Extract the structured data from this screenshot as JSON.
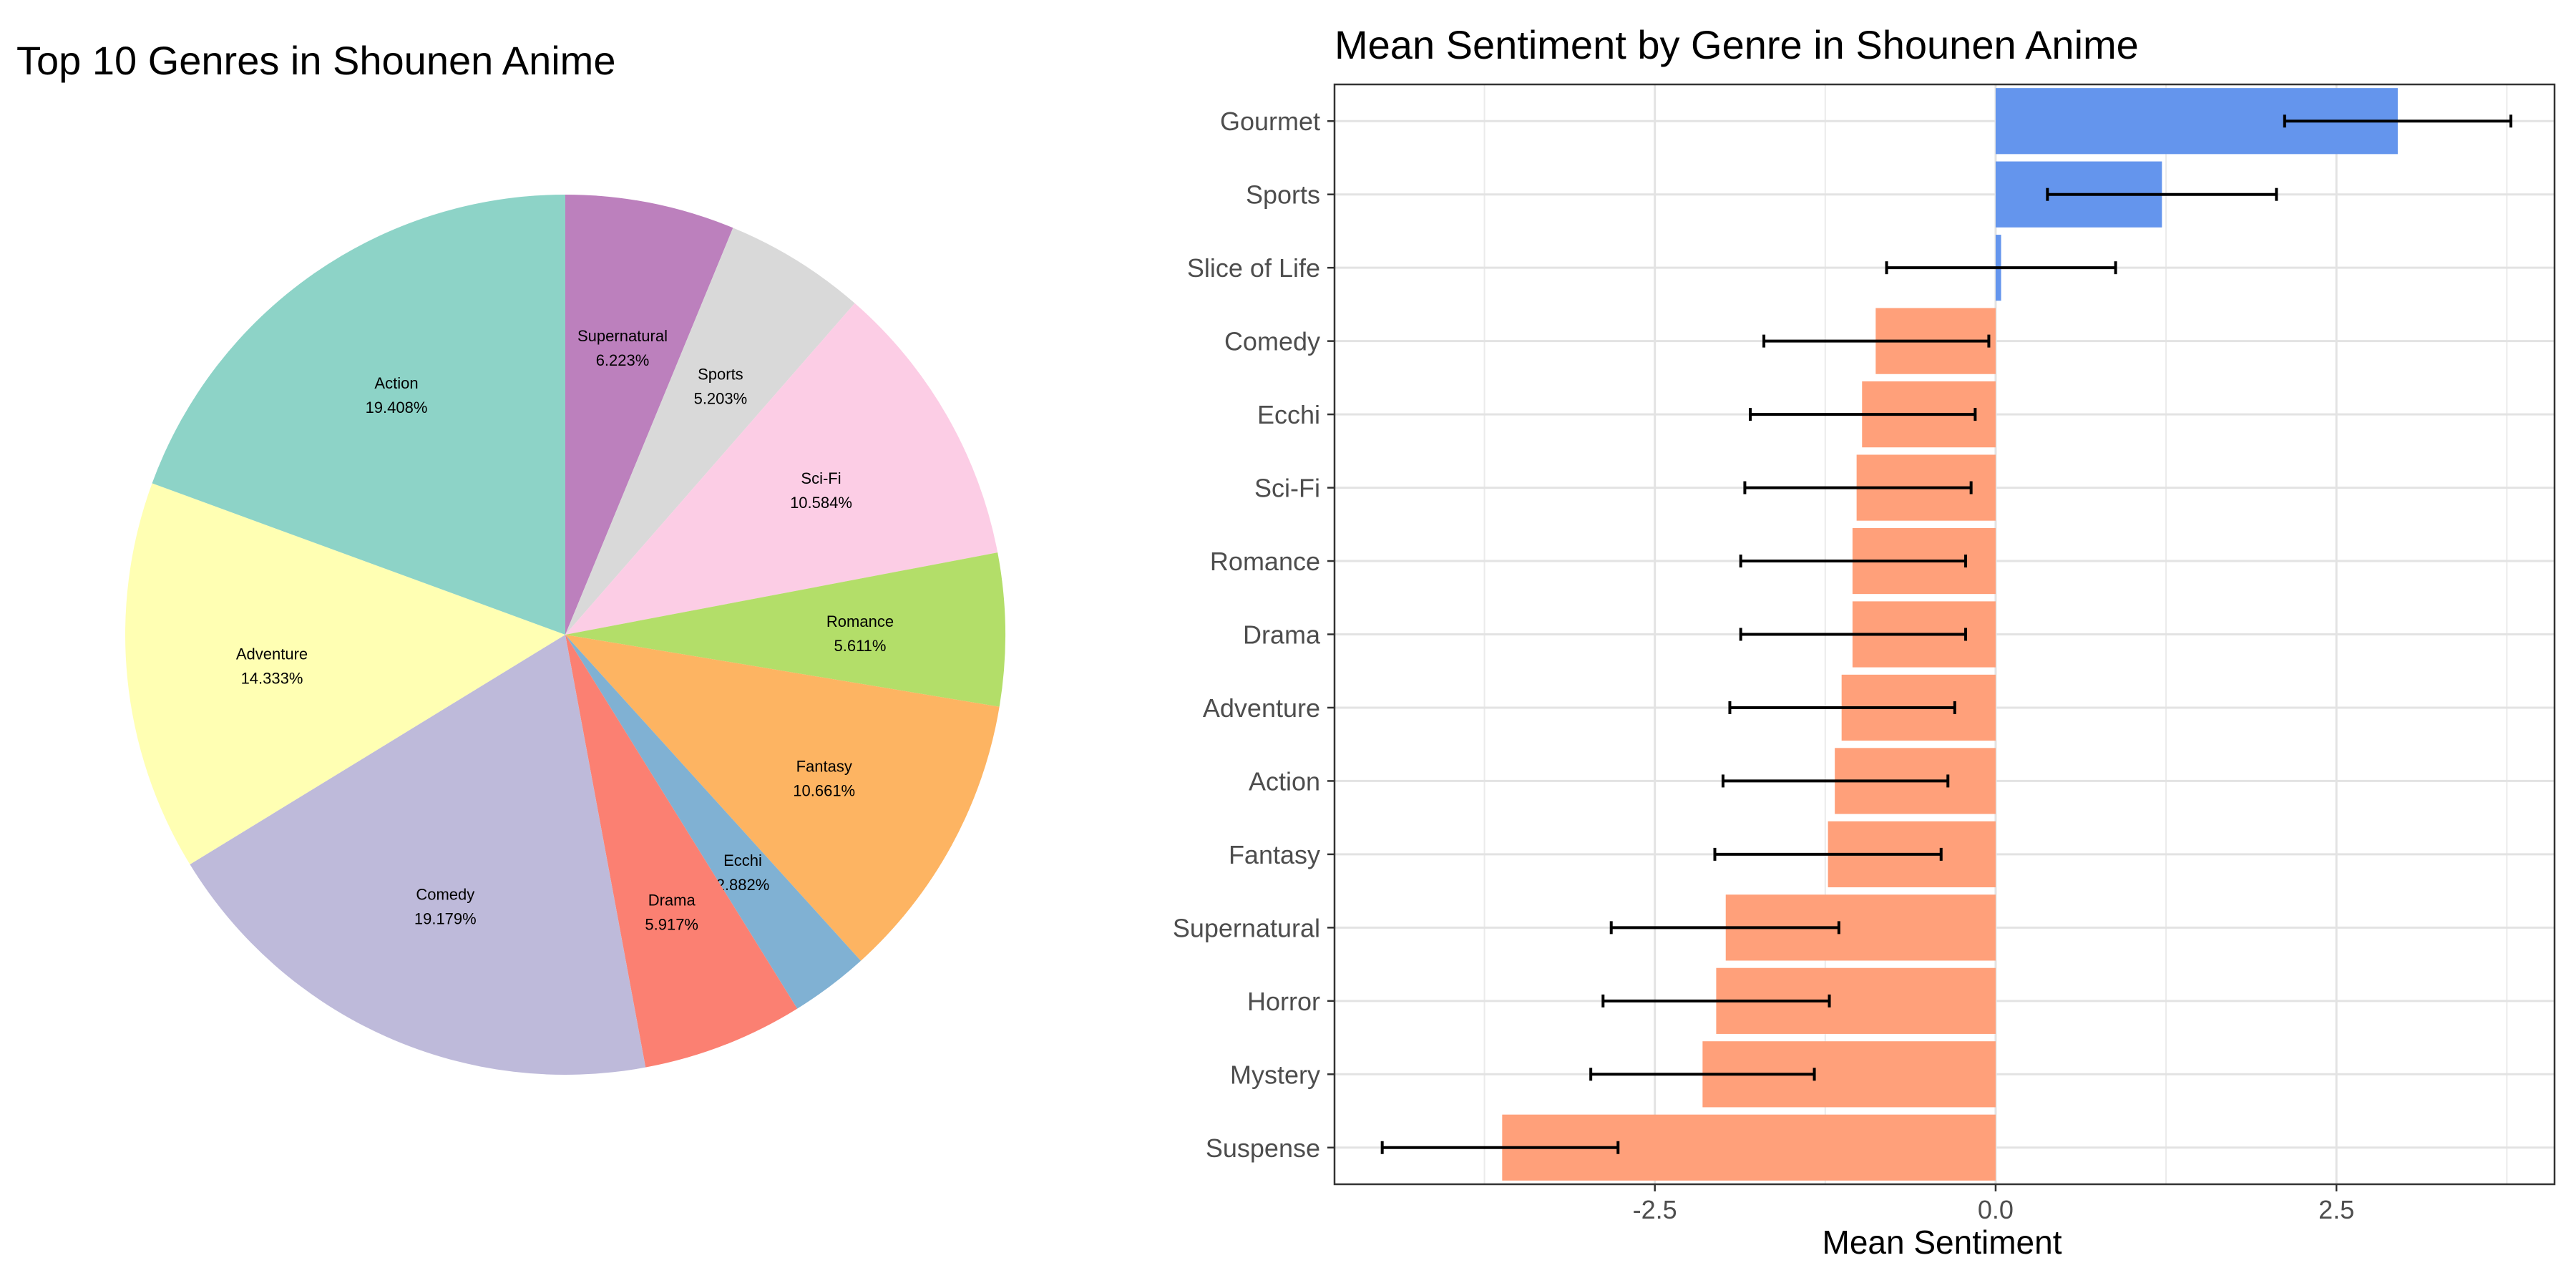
{
  "chart_data": [
    {
      "type": "pie",
      "title": "Top 10 Genres in Shounen Anime",
      "slices": [
        {
          "label": "Supernatural",
          "value": 6.223,
          "text": "6.223%",
          "color": "#BC80BD"
        },
        {
          "label": "Sports",
          "value": 5.203,
          "text": "5.203%",
          "color": "#D9D9D9"
        },
        {
          "label": "Sci-Fi",
          "value": 10.584,
          "text": "10.584%",
          "color": "#FCCDE5"
        },
        {
          "label": "Romance",
          "value": 5.611,
          "text": "5.611%",
          "color": "#B3DE69"
        },
        {
          "label": "Fantasy",
          "value": 10.661,
          "text": "10.661%",
          "color": "#FDB462"
        },
        {
          "label": "Ecchi",
          "value": 2.882,
          "text": "2.882%",
          "color": "#80B1D3"
        },
        {
          "label": "Drama",
          "value": 5.917,
          "text": "5.917%",
          "color": "#FB8072"
        },
        {
          "label": "Comedy",
          "value": 19.179,
          "text": "19.179%",
          "color": "#BEBADA"
        },
        {
          "label": "Adventure",
          "value": 14.333,
          "text": "14.333%",
          "color": "#FFFFB3"
        },
        {
          "label": "Action",
          "value": 19.408,
          "text": "19.408%",
          "color": "#8DD3C7"
        }
      ]
    },
    {
      "type": "bar",
      "orientation": "horizontal",
      "title": "Mean Sentiment by Genre in Shounen Anime",
      "xlabel": "Mean Sentiment",
      "ylabel": "",
      "xlim": [
        -4.85,
        4.1
      ],
      "xticks": [
        -2.5,
        0.0,
        2.5
      ],
      "xtick_labels": [
        "-2.5",
        "0.0",
        "2.5"
      ],
      "grid": true,
      "positive_color": "#6495ED",
      "negative_color": "#FFA07A",
      "categories": [
        "Gourmet",
        "Sports",
        "Slice of Life",
        "Comedy",
        "Ecchi",
        "Sci-Fi",
        "Romance",
        "Drama",
        "Adventure",
        "Action",
        "Fantasy",
        "Supernatural",
        "Horror",
        "Mystery",
        "Suspense"
      ],
      "values": [
        2.95,
        1.22,
        0.04,
        -0.88,
        -0.98,
        -1.02,
        -1.05,
        -1.05,
        -1.13,
        -1.18,
        -1.23,
        -1.98,
        -2.05,
        -2.15,
        -3.62
      ],
      "error_low": [
        2.12,
        0.38,
        -0.8,
        -1.7,
        -1.8,
        -1.84,
        -1.87,
        -1.87,
        -1.95,
        -2.0,
        -2.06,
        -2.82,
        -2.88,
        -2.97,
        -4.5
      ],
      "error_high": [
        3.78,
        2.06,
        0.88,
        -0.05,
        -0.15,
        -0.18,
        -0.22,
        -0.22,
        -0.3,
        -0.35,
        -0.4,
        -1.15,
        -1.22,
        -1.33,
        -2.77
      ]
    }
  ]
}
